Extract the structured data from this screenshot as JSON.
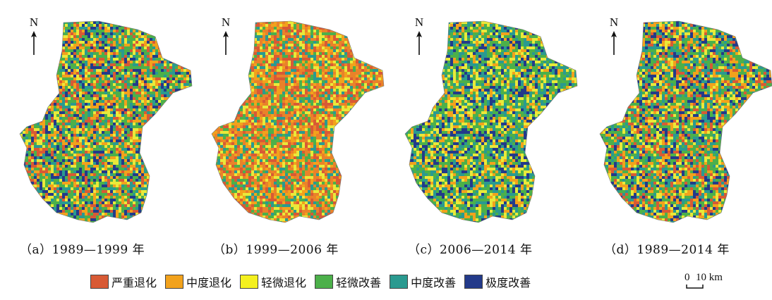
{
  "north_label": "N",
  "panels": [
    {
      "caption": "（a）1989—1999 年",
      "palette": [
        "#4cb04a",
        "#f2a21c",
        "#2a9a90",
        "#233a8a",
        "#e9e93a",
        "#d85a35"
      ]
    },
    {
      "caption": "（b）1999—2006 年",
      "palette": [
        "#e9822a",
        "#d85a35",
        "#f2a21c",
        "#e9e93a",
        "#4cb04a",
        "#2a9a90"
      ]
    },
    {
      "caption": "（c）2006—2014 年",
      "palette": [
        "#4cb04a",
        "#2a9a90",
        "#e9e93a",
        "#233a8a",
        "#f2a21c"
      ]
    },
    {
      "caption": "（d）1989—2014 年",
      "palette": [
        "#4cb04a",
        "#f2a21c",
        "#2a9a90",
        "#233a8a",
        "#e9e93a",
        "#d85a35"
      ]
    }
  ],
  "legend": [
    {
      "label": "严重退化",
      "color": "#d85a35"
    },
    {
      "label": "中度退化",
      "color": "#f2a21c"
    },
    {
      "label": "轻微退化",
      "color": "#f4f01e"
    },
    {
      "label": "轻微改善",
      "color": "#4cb04a"
    },
    {
      "label": "中度改善",
      "color": "#2a9a90"
    },
    {
      "label": "极度改善",
      "color": "#233a8a"
    }
  ],
  "scale": {
    "zero": "0",
    "distance": "10 km"
  }
}
